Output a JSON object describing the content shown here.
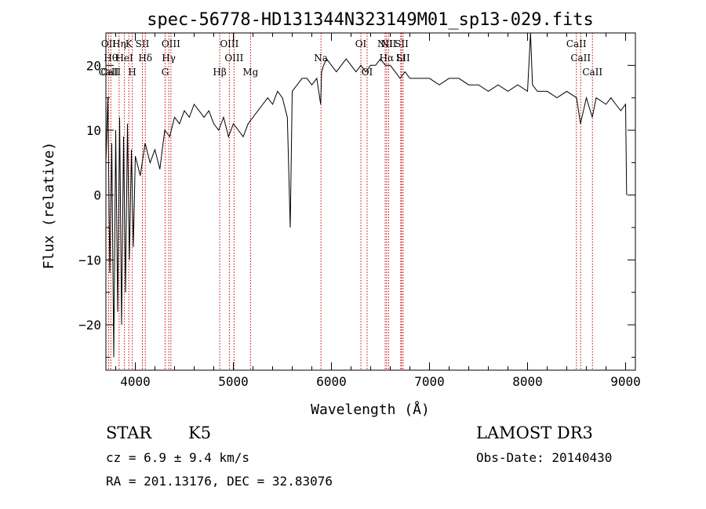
{
  "chart_data": {
    "type": "line",
    "title": "spec-56778-HD131344N323149M01_sp13-029.fits",
    "xlabel": "Wavelength (Å)",
    "ylabel": "Flux (relative)",
    "xlim": [
      3700,
      9100
    ],
    "ylim": [
      -27,
      25
    ],
    "x_ticks": [
      4000,
      5000,
      6000,
      7000,
      8000,
      9000
    ],
    "y_ticks": [
      -20,
      -10,
      0,
      10,
      20
    ],
    "x_tick_labels": [
      "4000",
      "5000",
      "6000",
      "7000",
      "8000",
      "9000"
    ],
    "y_tick_labels": [
      "−20",
      "−10",
      "0",
      "10",
      "20"
    ],
    "grid": false,
    "line_color": "#000000",
    "line_marker_color": "#cc0000",
    "series": [
      {
        "x": [
          3700,
          3720,
          3740,
          3760,
          3780,
          3800,
          3820,
          3840,
          3860,
          3880,
          3900,
          3920,
          3940,
          3960,
          3980,
          4000,
          4050,
          4100,
          4150,
          4200,
          4250,
          4300,
          4350,
          4400,
          4450,
          4500,
          4550,
          4600,
          4650,
          4700,
          4750,
          4800,
          4850,
          4900,
          4950,
          5000,
          5050,
          5100,
          5150,
          5200,
          5250,
          5300,
          5350,
          5400,
          5450,
          5500,
          5550,
          5580,
          5600,
          5650,
          5700,
          5750,
          5800,
          5850,
          5890,
          5900,
          5920,
          5950,
          6000,
          6050,
          6100,
          6150,
          6200,
          6250,
          6300,
          6350,
          6400,
          6450,
          6500,
          6550,
          6600,
          6650,
          6700,
          6750,
          6800,
          6900,
          7000,
          7100,
          7200,
          7300,
          7400,
          7500,
          7600,
          7700,
          7800,
          7900,
          8000,
          8030,
          8050,
          8100,
          8200,
          8300,
          8400,
          8500,
          8540,
          8600,
          8660,
          8700,
          8800,
          8850,
          8900,
          8950,
          9000,
          9010
        ],
        "y": [
          5,
          15,
          -12,
          8,
          -25,
          10,
          -18,
          12,
          -20,
          9,
          -15,
          11,
          -10,
          7,
          -8,
          6,
          3,
          8,
          5,
          7,
          4,
          10,
          9,
          12,
          11,
          13,
          12,
          14,
          13,
          12,
          13,
          11,
          10,
          12,
          9,
          11,
          10,
          9,
          11,
          12,
          13,
          14,
          15,
          14,
          16,
          15,
          12,
          -5,
          16,
          17,
          18,
          18,
          17,
          18,
          14,
          19,
          20,
          21,
          20,
          19,
          20,
          21,
          20,
          19,
          20,
          19,
          20,
          20,
          21,
          20,
          20,
          19,
          18,
          19,
          18,
          18,
          18,
          17,
          18,
          18,
          17,
          17,
          16,
          17,
          16,
          17,
          16,
          26,
          17,
          16,
          16,
          15,
          16,
          15,
          11,
          15,
          12,
          15,
          14,
          15,
          14,
          13,
          14,
          0
        ]
      }
    ],
    "line_markers": [
      {
        "wavelength": 3728,
        "top": "OII",
        "bottom": "CaII"
      },
      {
        "wavelength": 3750,
        "top": "Hθ",
        "bottom": "CaII"
      },
      {
        "wavelength": 3835,
        "top": "Hη",
        "bottom": ""
      },
      {
        "wavelength": 3889,
        "top": "HeI",
        "bottom": ""
      },
      {
        "wavelength": 3934,
        "top": "K",
        "bottom": ""
      },
      {
        "wavelength": 3969,
        "top": "",
        "bottom": "H"
      },
      {
        "wavelength": 4072,
        "top": "SII",
        "bottom": ""
      },
      {
        "wavelength": 4102,
        "top": "Hδ",
        "bottom": ""
      },
      {
        "wavelength": 4304,
        "top": "",
        "bottom": "G"
      },
      {
        "wavelength": 4341,
        "top": "Hγ",
        "bottom": ""
      },
      {
        "wavelength": 4363,
        "top": "OIII",
        "bottom": ""
      },
      {
        "wavelength": 4861,
        "top": "",
        "bottom": "Hβ"
      },
      {
        "wavelength": 4959,
        "top": "OIII",
        "bottom": ""
      },
      {
        "wavelength": 5007,
        "top": "OIII",
        "bottom": ""
      },
      {
        "wavelength": 5175,
        "top": "",
        "bottom": "Mg"
      },
      {
        "wavelength": 5893,
        "top": "Na",
        "bottom": ""
      },
      {
        "wavelength": 6300,
        "top": "OI",
        "bottom": ""
      },
      {
        "wavelength": 6364,
        "top": "",
        "bottom": "OI"
      },
      {
        "wavelength": 6548,
        "top": "NII",
        "bottom": ""
      },
      {
        "wavelength": 6563,
        "top": "Hα",
        "bottom": ""
      },
      {
        "wavelength": 6583,
        "top": "NII",
        "bottom": ""
      },
      {
        "wavelength": 6707,
        "top": "Li",
        "bottom": ""
      },
      {
        "wavelength": 6716,
        "top": "SII",
        "bottom": ""
      },
      {
        "wavelength": 6731,
        "top": "SII",
        "bottom": ""
      },
      {
        "wavelength": 8498,
        "top": "CaII",
        "bottom": ""
      },
      {
        "wavelength": 8542,
        "top": "CaII",
        "bottom": ""
      },
      {
        "wavelength": 8662,
        "top": "",
        "bottom": "CaII"
      }
    ]
  },
  "info": {
    "object_class": "STAR",
    "subclass": "K5",
    "survey": "LAMOST DR3",
    "cz": "cz = 6.9 ± 9.4 km/s",
    "obs_date": "Obs-Date: 20140430",
    "coords": "RA = 201.13176, DEC =  32.83076"
  }
}
